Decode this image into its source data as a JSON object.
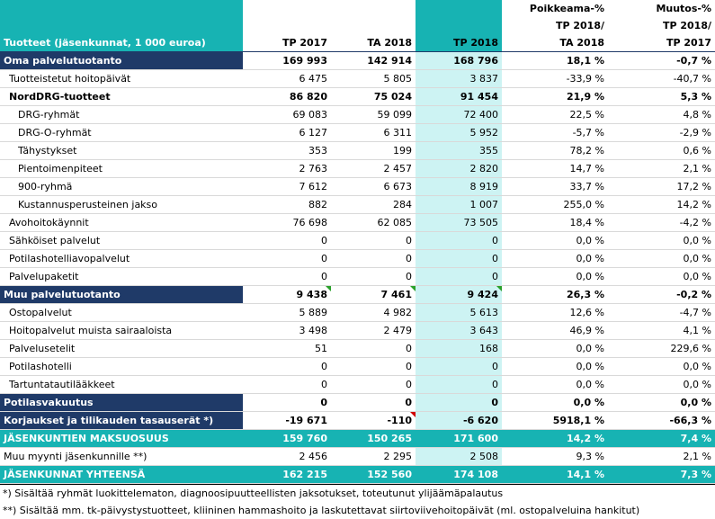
{
  "header": {
    "label_col": "Tuotteet (jäsenkunnat, 1 000 euroa)",
    "col1": "TP 2017",
    "col2": "TA 2018",
    "col3": "TP 2018",
    "col4_line1": "Poikkeama-%",
    "col4_line2": "TP 2018/",
    "col4_line3": "TA 2018",
    "col5_line1": "Muutos-%",
    "col5_line2": "TP 2018/",
    "col5_line3": "TP 2017"
  },
  "rows": [
    {
      "label": "Oma palvelutuotanto",
      "v1": "169 993",
      "v2": "142 914",
      "v3": "168 796",
      "p1": "18,1 %",
      "p2": "-0,7 %"
    },
    {
      "label": "Tuotteistetut hoitopäivät",
      "v1": "6 475",
      "v2": "5 805",
      "v3": "3 837",
      "p1": "-33,9 %",
      "p2": "-40,7 %"
    },
    {
      "label": "NordDRG-tuotteet",
      "v1": "86 820",
      "v2": "75 024",
      "v3": "91 454",
      "p1": "21,9 %",
      "p2": "5,3 %"
    },
    {
      "label": "DRG-ryhmät",
      "v1": "69 083",
      "v2": "59 099",
      "v3": "72 400",
      "p1": "22,5 %",
      "p2": "4,8 %"
    },
    {
      "label": "DRG-O-ryhmät",
      "v1": "6 127",
      "v2": "6 311",
      "v3": "5 952",
      "p1": "-5,7 %",
      "p2": "-2,9 %"
    },
    {
      "label": "Tähystykset",
      "v1": "353",
      "v2": "199",
      "v3": "355",
      "p1": "78,2 %",
      "p2": "0,6 %"
    },
    {
      "label": "Pientoimenpiteet",
      "v1": "2 763",
      "v2": "2 457",
      "v3": "2 820",
      "p1": "14,7 %",
      "p2": "2,1 %"
    },
    {
      "label": "900-ryhmä",
      "v1": "7 612",
      "v2": "6 673",
      "v3": "8 919",
      "p1": "33,7 %",
      "p2": "17,2 %"
    },
    {
      "label": "Kustannusperusteinen jakso",
      "v1": "882",
      "v2": "284",
      "v3": "1 007",
      "p1": "255,0 %",
      "p2": "14,2 %"
    },
    {
      "label": "Avohoitokäynnit",
      "v1": "76 698",
      "v2": "62 085",
      "v3": "73 505",
      "p1": "18,4 %",
      "p2": "-4,2 %"
    },
    {
      "label": "Sähköiset palvelut",
      "v1": "0",
      "v2": "0",
      "v3": "0",
      "p1": "0,0 %",
      "p2": "0,0 %"
    },
    {
      "label": "Potilashotelliavopalvelut",
      "v1": "0",
      "v2": "0",
      "v3": "0",
      "p1": "0,0 %",
      "p2": "0,0 %"
    },
    {
      "label": "Palvelupaketit",
      "v1": "0",
      "v2": "0",
      "v3": "0",
      "p1": "0,0 %",
      "p2": "0,0 %"
    },
    {
      "label": "Muu palvelutuotanto",
      "v1": "9 438",
      "v2": "7 461",
      "v3": "9 424",
      "p1": "26,3 %",
      "p2": "-0,2 %"
    },
    {
      "label": "Ostopalvelut",
      "v1": "5 889",
      "v2": "4 982",
      "v3": "5 613",
      "p1": "12,6 %",
      "p2": "-4,7 %"
    },
    {
      "label": "Hoitopalvelut muista sairaaloista",
      "v1": "3 498",
      "v2": "2 479",
      "v3": "3 643",
      "p1": "46,9 %",
      "p2": "4,1 %"
    },
    {
      "label": "Palvelusetelit",
      "v1": "51",
      "v2": "0",
      "v3": "168",
      "p1": "0,0 %",
      "p2": "229,6 %"
    },
    {
      "label": "Potilashotelli",
      "v1": "0",
      "v2": "0",
      "v3": "0",
      "p1": "0,0 %",
      "p2": "0,0 %"
    },
    {
      "label": "Tartuntatautilääkkeet",
      "v1": "0",
      "v2": "0",
      "v3": "0",
      "p1": "0,0 %",
      "p2": "0,0 %"
    },
    {
      "label": "Potilasvakuutus",
      "v1": "0",
      "v2": "0",
      "v3": "0",
      "p1": "0,0 %",
      "p2": "0,0 %"
    },
    {
      "label": "Korjaukset ja tilikauden tasauserät *)",
      "v1": "-19 671",
      "v2": "-110",
      "v3": "-6 620",
      "p1": "5918,1 %",
      "p2": "-66,3 %"
    },
    {
      "label": "JÄSENKUNTIEN MAKSUOSUUS",
      "v1": "159 760",
      "v2": "150 265",
      "v3": "171 600",
      "p1": "14,2 %",
      "p2": "7,4 %"
    },
    {
      "label": "Muu myynti jäsenkunnille **)",
      "v1": "2 456",
      "v2": "2 295",
      "v3": "2 508",
      "p1": "9,3 %",
      "p2": "2,1 %"
    },
    {
      "label": "JÄSENKUNNAT YHTEENSÄ",
      "v1": "162 215",
      "v2": "152 560",
      "v3": "174 108",
      "p1": "14,1 %",
      "p2": "7,3 %"
    }
  ],
  "footnotes": {
    "f1": "*) Sisältää ryhmät luokittelematon, diagnoosipuutteellisten jaksotukset, toteutunut ylijäämäpalautus",
    "f2": "**) Sisältää mm. tk-päivystystuotteet, kliininen hammashoito ja laskutettavat siirtoviivehoitopäivät (ml. ostopalveluina hankitut)"
  },
  "colors": {
    "teal": "#17b3b3",
    "navy": "#1f3a68",
    "highlight": "#cdf3f3"
  }
}
